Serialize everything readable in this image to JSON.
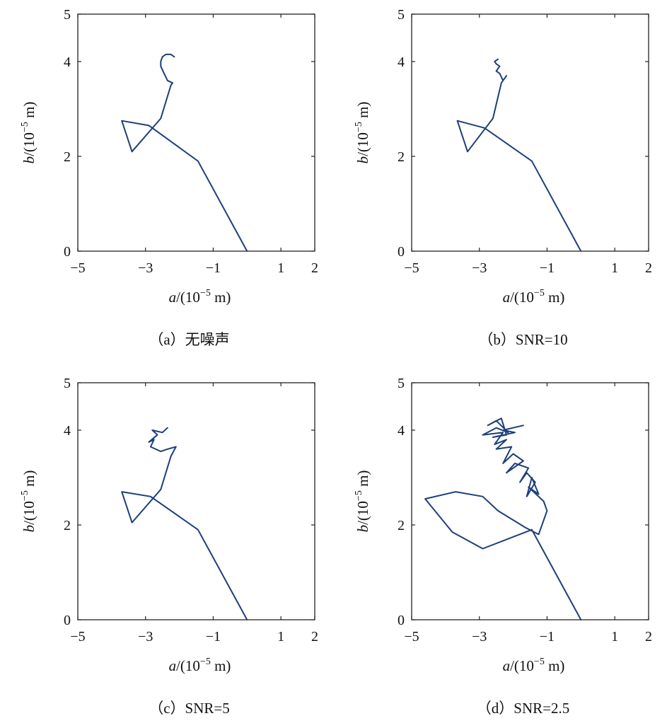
{
  "chart_data": [
    {
      "id": "a",
      "type": "line",
      "caption": "（a）无噪声",
      "xlabel": {
        "var": "a",
        "unit": "/(10",
        "exp": "−5",
        "tail": " m)"
      },
      "ylabel": {
        "var": "b",
        "unit": "/(10",
        "exp": "−5",
        "tail": " m)"
      },
      "xlim": [
        -5,
        2
      ],
      "ylim": [
        0,
        5
      ],
      "xticks": [
        -5,
        -3,
        -1,
        1,
        2
      ],
      "xtick_labels": [
        "−5",
        "−3",
        "−1",
        "1",
        "2"
      ],
      "yticks": [
        0,
        2,
        4,
        5
      ],
      "ytick_labels": [
        "0",
        "2",
        "4",
        "5"
      ],
      "series": [
        {
          "name": "trajectory",
          "x": [
            0.0,
            -1.45,
            -2.9,
            -3.7,
            -3.4,
            -2.55,
            -2.25,
            -2.2,
            -2.35,
            -2.45,
            -2.55,
            -2.55,
            -2.5,
            -2.4,
            -2.25,
            -2.15
          ],
          "y": [
            0.0,
            1.9,
            2.65,
            2.75,
            2.1,
            2.8,
            3.5,
            3.55,
            3.6,
            3.75,
            3.9,
            4.0,
            4.1,
            4.15,
            4.15,
            4.1
          ]
        }
      ]
    },
    {
      "id": "b",
      "type": "line",
      "caption": "（b）SNR=10",
      "xlabel": {
        "var": "a",
        "unit": "/(10",
        "exp": "−5",
        "tail": " m)"
      },
      "ylabel": {
        "var": "b",
        "unit": "/(10",
        "exp": "−5",
        "tail": " m)"
      },
      "xlim": [
        -5,
        2
      ],
      "ylim": [
        0,
        5
      ],
      "xticks": [
        -5,
        -3,
        -1,
        1,
        2
      ],
      "xtick_labels": [
        "−5",
        "−3",
        "−1",
        "1",
        "2"
      ],
      "yticks": [
        0,
        2,
        4,
        5
      ],
      "ytick_labels": [
        "0",
        "2",
        "4",
        "5"
      ],
      "series": [
        {
          "name": "trajectory",
          "x": [
            0.0,
            -1.45,
            -2.85,
            -3.65,
            -3.35,
            -2.6,
            -2.35,
            -2.2,
            -2.3,
            -2.4,
            -2.5,
            -2.4,
            -2.5,
            -2.55,
            -2.45
          ],
          "y": [
            0.0,
            1.9,
            2.6,
            2.75,
            2.1,
            2.8,
            3.55,
            3.7,
            3.6,
            3.75,
            3.8,
            3.9,
            3.95,
            4.0,
            4.05
          ]
        }
      ]
    },
    {
      "id": "c",
      "type": "line",
      "caption": "（c）SNR=5",
      "xlabel": {
        "var": "a",
        "unit": "/(10",
        "exp": "−5",
        "tail": " m)"
      },
      "ylabel": {
        "var": "b",
        "unit": "/(10",
        "exp": "−5",
        "tail": " m)"
      },
      "xlim": [
        -5,
        2
      ],
      "ylim": [
        0,
        5
      ],
      "xticks": [
        -5,
        -3,
        -1,
        1,
        2
      ],
      "xtick_labels": [
        "−5",
        "−3",
        "−1",
        "1",
        "2"
      ],
      "yticks": [
        0,
        2,
        4,
        5
      ],
      "ytick_labels": [
        "0",
        "2",
        "4",
        "5"
      ],
      "series": [
        {
          "name": "trajectory",
          "x": [
            0.0,
            -1.45,
            -2.85,
            -3.7,
            -3.4,
            -2.55,
            -2.25,
            -2.1,
            -2.35,
            -2.55,
            -2.85,
            -2.75,
            -2.9,
            -2.65,
            -2.8,
            -2.5,
            -2.35
          ],
          "y": [
            0.0,
            1.9,
            2.6,
            2.7,
            2.05,
            2.75,
            3.45,
            3.65,
            3.6,
            3.55,
            3.65,
            3.8,
            3.75,
            3.9,
            4.0,
            3.95,
            4.05
          ]
        }
      ]
    },
    {
      "id": "d",
      "type": "line",
      "caption": "（d）SNR=2.5",
      "xlabel": {
        "var": "a",
        "unit": "/(10",
        "exp": "−5",
        "tail": " m)"
      },
      "ylabel": {
        "var": "b",
        "unit": "/(10",
        "exp": "−5",
        "tail": " m)"
      },
      "xlim": [
        -5,
        2
      ],
      "ylim": [
        0,
        5
      ],
      "xticks": [
        -5,
        -3,
        -1,
        1,
        2
      ],
      "xtick_labels": [
        "−5",
        "−3",
        "−1",
        "1",
        "2"
      ],
      "yticks": [
        0,
        2,
        4,
        5
      ],
      "ytick_labels": [
        "0",
        "2",
        "4",
        "5"
      ],
      "series": [
        {
          "name": "trajectory",
          "x": [
            0.0,
            -1.45,
            -2.9,
            -3.8,
            -4.6,
            -3.7,
            -2.9,
            -2.45,
            -1.65,
            -1.25,
            -1.0,
            -1.1,
            -1.55,
            -1.25,
            -1.45,
            -1.6,
            -1.35,
            -1.6,
            -1.8,
            -1.55,
            -1.95,
            -2.2,
            -1.7,
            -2.0,
            -2.3,
            -2.05,
            -2.5,
            -2.2,
            -2.55,
            -2.3,
            -2.9,
            -2.5,
            -2.15,
            -2.5,
            -2.75,
            -2.35,
            -2.2,
            -2.6,
            -1.95,
            -2.3,
            -1.7
          ],
          "y": [
            0.0,
            1.9,
            1.5,
            1.85,
            2.55,
            2.7,
            2.6,
            2.3,
            1.95,
            1.8,
            2.3,
            2.5,
            2.8,
            2.65,
            3.0,
            2.6,
            2.9,
            3.1,
            2.9,
            3.2,
            3.3,
            3.1,
            3.35,
            3.5,
            3.3,
            3.65,
            3.6,
            3.8,
            3.7,
            3.95,
            3.9,
            4.05,
            3.95,
            4.2,
            4.1,
            4.25,
            3.9,
            3.85,
            3.95,
            4.0,
            4.1
          ]
        }
      ]
    }
  ]
}
